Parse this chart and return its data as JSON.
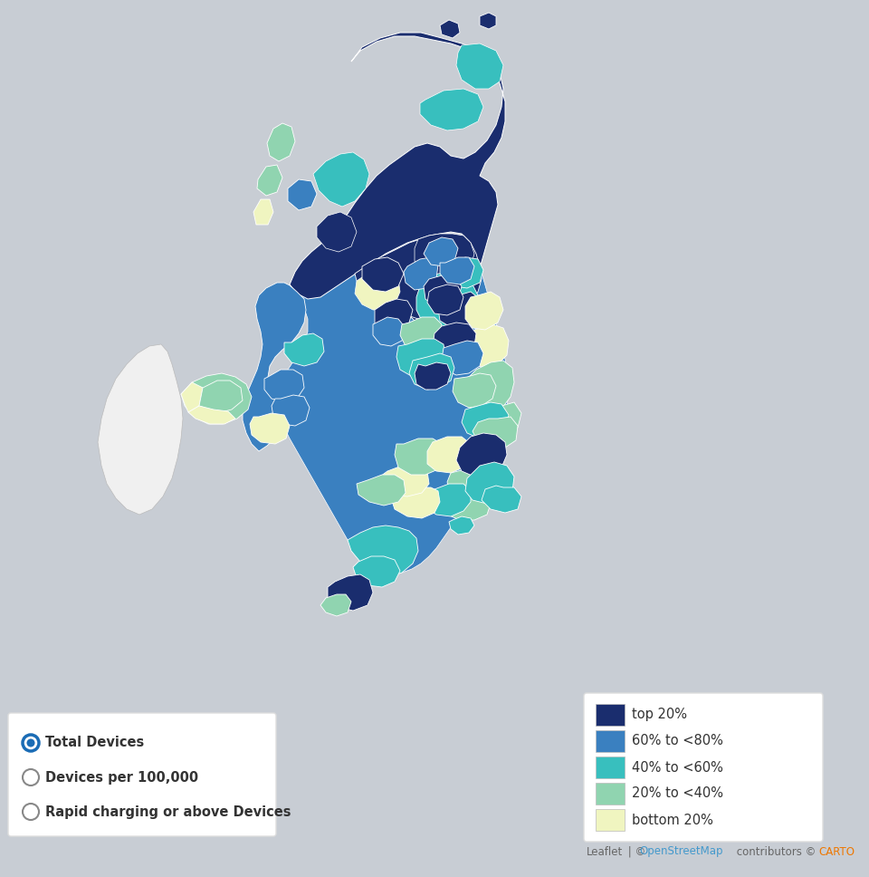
{
  "background_color": "#c8cdd4",
  "figure_size": [
    9.6,
    9.68
  ],
  "dpi": 100,
  "legend_colors": {
    "bottom_20": "#f0f5c0",
    "20_to_40": "#90d4b0",
    "40_to_60": "#38bfbe",
    "60_to_80": "#3a80c0",
    "top_20": "#1a2d6e"
  },
  "legend_labels": [
    "bottom 20%",
    "20% to <40%",
    "40% to <60%",
    "60% to <80%",
    "top 20%"
  ],
  "radio_labels": [
    "Total Devices",
    "Devices per 100,000",
    "Rapid charging or above Devices"
  ],
  "radio_selected": 0,
  "attribution_leaflet_color": "#666666",
  "attribution_osm_color": "#4499cc",
  "attribution_carto_color": "#ee7700"
}
